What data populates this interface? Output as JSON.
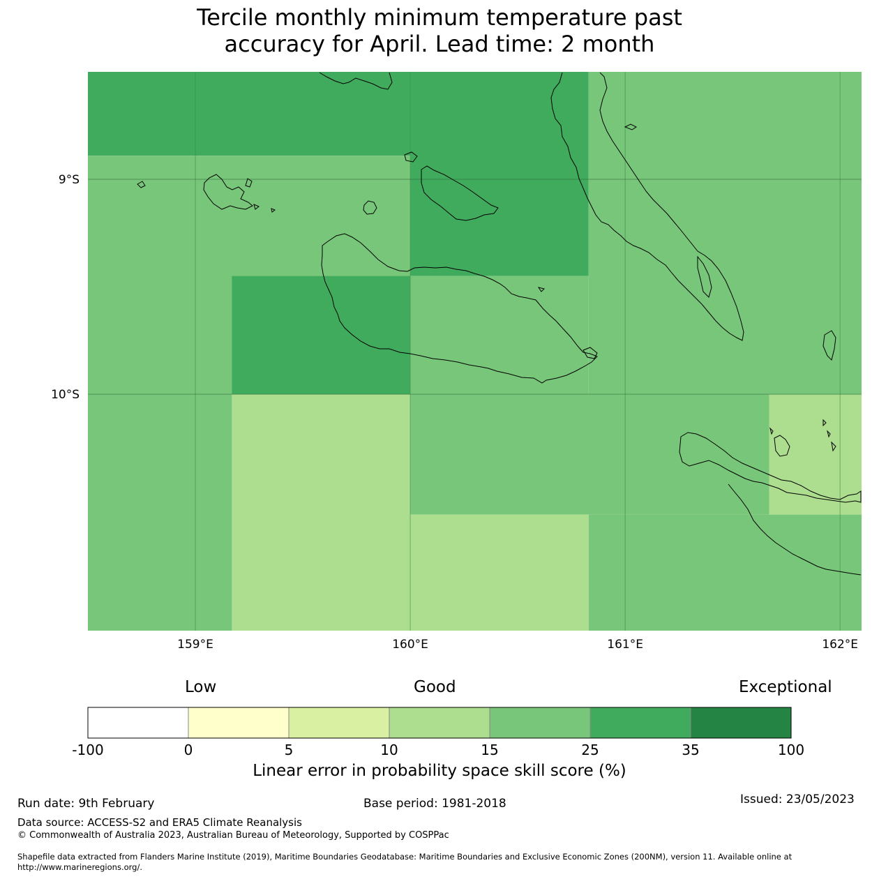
{
  "title": {
    "line1": "Tercile monthly minimum temperature past",
    "line2": "accuracy for April. Lead time: 2 month"
  },
  "map": {
    "lon_range": [
      158.5,
      162.1
    ],
    "lat_range": [
      -11.1,
      -8.5
    ],
    "lon_ticks": [
      {
        "value": 159,
        "label": "159°E"
      },
      {
        "value": 160,
        "label": "160°E"
      },
      {
        "value": 161,
        "label": "161°E"
      },
      {
        "value": 162,
        "label": "162°E"
      }
    ],
    "lat_ticks": [
      {
        "value": -9,
        "label": "9°S"
      },
      {
        "value": -10,
        "label": "10°S"
      }
    ],
    "cells": [
      {
        "lon": [
          158.5,
          160.0
        ],
        "lat": [
          -8.5,
          -8.89
        ],
        "category": "25-35"
      },
      {
        "lon": [
          158.5,
          160.0
        ],
        "lat": [
          -8.89,
          -10.0
        ],
        "category": "15-25"
      },
      {
        "lon": [
          160.0,
          160.83
        ],
        "lat": [
          -8.5,
          -9.45
        ],
        "category": "25-35"
      },
      {
        "lon": [
          159.17,
          160.0
        ],
        "lat": [
          -9.45,
          -10.0
        ],
        "category": "25-35"
      },
      {
        "lon": [
          160.0,
          160.83
        ],
        "lat": [
          -9.45,
          -10.0
        ],
        "category": "15-25"
      },
      {
        "lon": [
          160.83,
          162.1
        ],
        "lat": [
          -8.5,
          -10.0
        ],
        "category": "15-25"
      },
      {
        "lon": [
          158.5,
          159.17
        ],
        "lat": [
          -10.0,
          -11.1
        ],
        "category": "15-25"
      },
      {
        "lon": [
          159.17,
          160.0
        ],
        "lat": [
          -10.0,
          -11.1
        ],
        "category": "10-15"
      },
      {
        "lon": [
          160.0,
          161.67
        ],
        "lat": [
          -10.0,
          -10.56
        ],
        "category": "15-25"
      },
      {
        "lon": [
          161.67,
          162.1
        ],
        "lat": [
          -10.0,
          -10.56
        ],
        "category": "10-15"
      },
      {
        "lon": [
          160.0,
          160.83
        ],
        "lat": [
          -10.56,
          -11.1
        ],
        "category": "10-15"
      },
      {
        "lon": [
          160.83,
          162.1
        ],
        "lat": [
          -10.56,
          -11.1
        ],
        "category": "15-25"
      }
    ]
  },
  "colorbar": {
    "low_label": "Low",
    "good_label": "Good",
    "exceptional_label": "Exceptional",
    "segments": [
      {
        "range": "-100-0",
        "color": "#ffffff"
      },
      {
        "range": "0-5",
        "color": "#ffffcc"
      },
      {
        "range": "5-10",
        "color": "#d9f0a3"
      },
      {
        "range": "10-15",
        "color": "#addd8e"
      },
      {
        "range": "15-25",
        "color": "#78c679"
      },
      {
        "range": "25-35",
        "color": "#41ab5d"
      },
      {
        "range": "35-100",
        "color": "#238443"
      }
    ],
    "ticks": [
      "-100",
      "0",
      "5",
      "10",
      "15",
      "25",
      "35",
      "100"
    ],
    "label": "Linear error in probability space skill score (%)"
  },
  "footer": {
    "run_date": "Run date: 9th February",
    "base_period": "Base period: 1981-2018",
    "issued": "Issued: 23/05/2023",
    "data_source": "Data source: ACCESS-S2 and ERA5 Climate Reanalysis",
    "copyright": "© Commonwealth of Australia 2023, Australian Bureau of Meteorology, Supported by COSPPac",
    "shapefile_line1": "Shapefile data extracted from Flanders Marine Institute (2019), Maritime Boundaries Geodatabase: Maritime Boundaries and Exclusive Economic Zones (200NM), version 11. Available online at",
    "shapefile_line2": "http://www.marineregions.org/."
  }
}
